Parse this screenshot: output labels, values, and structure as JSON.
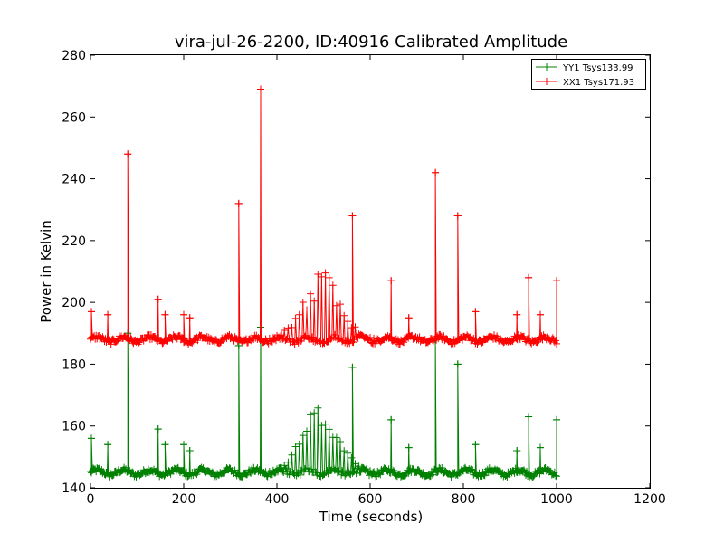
{
  "chart_data": {
    "type": "line",
    "title": "vira-jul-26-2200, ID:40916 Calibrated Amplitude",
    "xlabel": "Time (seconds)",
    "ylabel": "Power in Kelvin",
    "xlim": [
      0,
      1200
    ],
    "ylim": [
      140,
      280
    ],
    "xticks": [
      0,
      200,
      400,
      600,
      800,
      1000,
      1200
    ],
    "yticks": [
      140,
      160,
      180,
      200,
      220,
      240,
      260,
      280
    ],
    "grid": false,
    "legend_position": "top-right",
    "marker": "+",
    "x_range": [
      0,
      1000
    ],
    "series": [
      {
        "name": "YY1 Tsys133.99",
        "color": "#008000",
        "baseline": 145,
        "spikes": [
          {
            "x": 2,
            "y": 156
          },
          {
            "x": 37,
            "y": 154
          },
          {
            "x": 80,
            "y": 190
          },
          {
            "x": 145,
            "y": 159
          },
          {
            "x": 160,
            "y": 154
          },
          {
            "x": 200,
            "y": 154
          },
          {
            "x": 213,
            "y": 152
          },
          {
            "x": 318,
            "y": 186
          },
          {
            "x": 365,
            "y": 192
          },
          {
            "x": 562,
            "y": 179
          },
          {
            "x": 645,
            "y": 162
          },
          {
            "x": 683,
            "y": 153
          },
          {
            "x": 740,
            "y": 188
          },
          {
            "x": 788,
            "y": 180
          },
          {
            "x": 826,
            "y": 154
          },
          {
            "x": 915,
            "y": 152
          },
          {
            "x": 940,
            "y": 163
          },
          {
            "x": 965,
            "y": 153
          },
          {
            "x": 1000,
            "y": 162
          }
        ],
        "hump": {
          "center": 495,
          "peak": 168,
          "width": 75
        }
      },
      {
        "name": "XX1 Tsys171.93",
        "color": "#ff0000",
        "baseline": 188,
        "spikes": [
          {
            "x": 2,
            "y": 197
          },
          {
            "x": 37,
            "y": 196
          },
          {
            "x": 80,
            "y": 248
          },
          {
            "x": 145,
            "y": 201
          },
          {
            "x": 160,
            "y": 196
          },
          {
            "x": 200,
            "y": 196
          },
          {
            "x": 213,
            "y": 195
          },
          {
            "x": 318,
            "y": 232
          },
          {
            "x": 365,
            "y": 269
          },
          {
            "x": 562,
            "y": 228
          },
          {
            "x": 645,
            "y": 207
          },
          {
            "x": 683,
            "y": 195
          },
          {
            "x": 740,
            "y": 242
          },
          {
            "x": 788,
            "y": 228
          },
          {
            "x": 826,
            "y": 197
          },
          {
            "x": 915,
            "y": 196
          },
          {
            "x": 940,
            "y": 208
          },
          {
            "x": 965,
            "y": 196
          },
          {
            "x": 1000,
            "y": 207
          }
        ],
        "hump": {
          "center": 495,
          "peak": 211,
          "width": 75
        }
      }
    ]
  }
}
